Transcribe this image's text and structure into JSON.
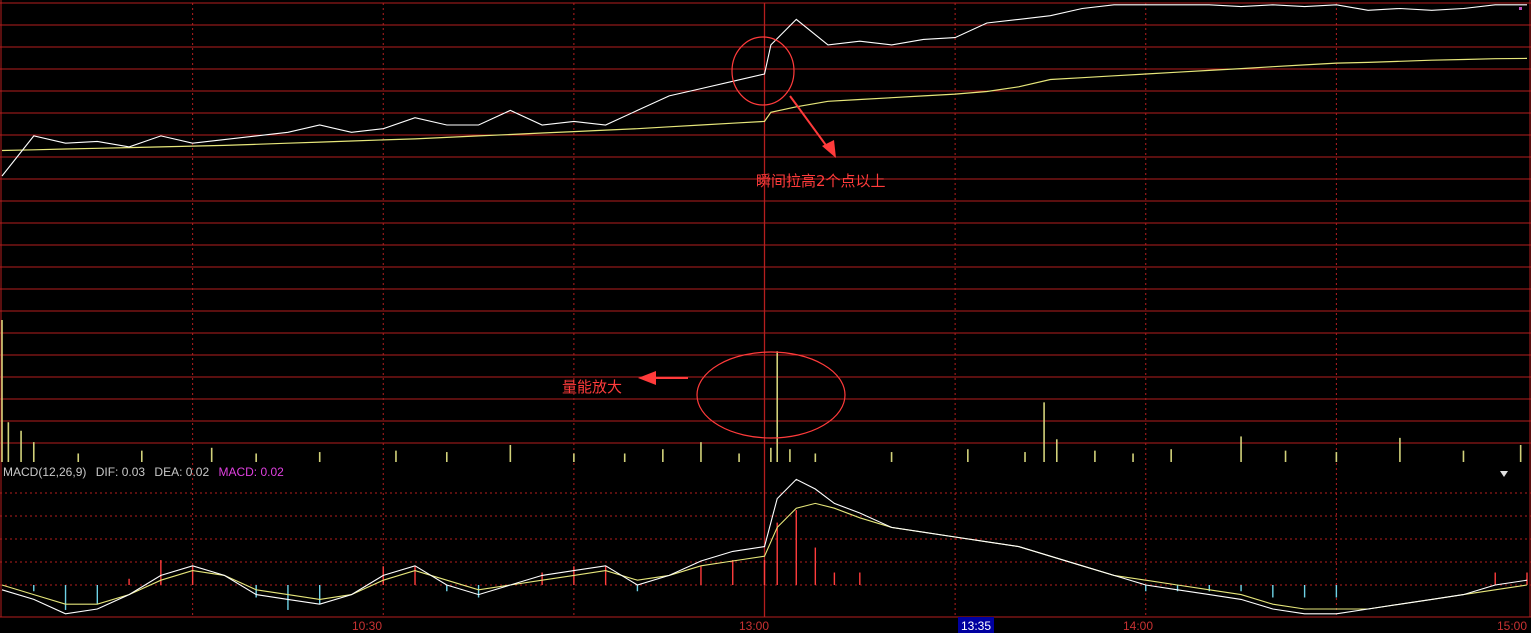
{
  "colors": {
    "background": "#000000",
    "grid": "#b41e1e",
    "price_line": "#ffffff",
    "avg_line": "#e6e67a",
    "volume_bar": "#d2d27a",
    "macd_positive": "#ff3c3c",
    "macd_negative": "#6ed2e6",
    "macd_label": "#c8c8c8",
    "macd_value": "#e040e0",
    "annotation": "#ff3b3b",
    "time_highlight_bg": "#0000a0"
  },
  "macd_header": {
    "name": "MACD(12,26,9)",
    "dif": "DIF: 0.03",
    "dea": "DEA: 0.02",
    "macd": "MACD: 0.02"
  },
  "annotations": {
    "price_spike": "瞬间拉高2个点以上",
    "volume_spike": "量能放大"
  },
  "collapse_icon": "triangle-down-icon",
  "chart_data": [
    {
      "type": "line",
      "panel": "price",
      "x_ticks": [
        "10:30",
        "13:00",
        "13:35",
        "14:00",
        "15:00"
      ],
      "highlighted_tick": "13:35",
      "grid": true,
      "x": [
        0,
        5,
        10,
        15,
        20,
        25,
        30,
        35,
        40,
        45,
        50,
        55,
        60,
        65,
        70,
        75,
        80,
        85,
        90,
        95,
        100,
        105,
        110,
        115,
        120,
        121,
        125,
        130,
        135,
        140,
        145,
        150,
        155,
        160,
        165,
        170,
        175,
        180,
        185,
        190,
        195,
        200,
        205,
        210,
        215,
        220,
        225,
        230,
        235,
        240
      ],
      "series": [
        {
          "name": "price",
          "values": [
            0.0,
            1.1,
            0.9,
            0.95,
            0.8,
            1.1,
            0.9,
            1.0,
            1.1,
            1.2,
            1.4,
            1.2,
            1.3,
            1.6,
            1.4,
            1.4,
            1.8,
            1.4,
            1.5,
            1.4,
            1.8,
            2.2,
            2.4,
            2.6,
            2.8,
            3.6,
            4.3,
            3.6,
            3.7,
            3.6,
            3.75,
            3.8,
            4.2,
            4.3,
            4.4,
            4.6,
            4.7,
            4.7,
            4.7,
            4.7,
            4.65,
            4.7,
            4.65,
            4.7,
            4.55,
            4.6,
            4.55,
            4.6,
            4.7,
            4.7
          ]
        },
        {
          "name": "avg",
          "values": [
            0.7,
            0.72,
            0.74,
            0.76,
            0.78,
            0.8,
            0.82,
            0.84,
            0.87,
            0.9,
            0.93,
            0.96,
            0.99,
            1.02,
            1.06,
            1.1,
            1.14,
            1.18,
            1.22,
            1.26,
            1.3,
            1.35,
            1.4,
            1.45,
            1.5,
            1.75,
            1.9,
            2.05,
            2.1,
            2.15,
            2.2,
            2.25,
            2.32,
            2.45,
            2.65,
            2.7,
            2.75,
            2.8,
            2.85,
            2.9,
            2.95,
            3.0,
            3.05,
            3.1,
            3.12,
            3.15,
            3.18,
            3.2,
            3.22,
            3.23
          ]
        }
      ]
    },
    {
      "type": "bar",
      "panel": "volume",
      "x": [
        0,
        1,
        3,
        5,
        12,
        22,
        33,
        40,
        50,
        62,
        70,
        80,
        90,
        98,
        104,
        110,
        116,
        121,
        122,
        124,
        128,
        140,
        152,
        161,
        164,
        166,
        172,
        178,
        184,
        195,
        202,
        210,
        220,
        230,
        239
      ],
      "values": [
        100,
        28,
        22,
        14,
        6,
        8,
        10,
        6,
        7,
        8,
        7,
        12,
        6,
        6,
        9,
        14,
        6,
        10,
        78,
        9,
        6,
        7,
        9,
        7,
        42,
        16,
        8,
        6,
        9,
        18,
        8,
        7,
        17,
        8,
        12
      ]
    },
    {
      "type": "line",
      "panel": "macd",
      "x": [
        0,
        5,
        10,
        15,
        20,
        25,
        30,
        35,
        40,
        45,
        50,
        55,
        60,
        65,
        70,
        75,
        80,
        85,
        90,
        95,
        100,
        105,
        110,
        115,
        120,
        122,
        125,
        128,
        131,
        135,
        140,
        145,
        150,
        155,
        160,
        165,
        170,
        175,
        180,
        185,
        190,
        195,
        200,
        205,
        210,
        215,
        220,
        225,
        230,
        235,
        240
      ],
      "series": [
        {
          "name": "DIF",
          "values": [
            -0.01,
            -0.03,
            -0.06,
            -0.05,
            -0.02,
            0.02,
            0.04,
            0.02,
            -0.02,
            -0.03,
            -0.04,
            -0.02,
            0.02,
            0.04,
            0.0,
            -0.02,
            0.0,
            0.02,
            0.03,
            0.04,
            0.0,
            0.02,
            0.05,
            0.07,
            0.08,
            0.18,
            0.22,
            0.2,
            0.17,
            0.15,
            0.12,
            0.11,
            0.1,
            0.09,
            0.08,
            0.06,
            0.04,
            0.02,
            0.0,
            -0.01,
            -0.02,
            -0.03,
            -0.05,
            -0.06,
            -0.06,
            -0.05,
            -0.04,
            -0.03,
            -0.02,
            0.0,
            0.01
          ]
        },
        {
          "name": "DEA",
          "values": [
            0.0,
            -0.02,
            -0.04,
            -0.04,
            -0.02,
            0.01,
            0.03,
            0.02,
            -0.01,
            -0.02,
            -0.03,
            -0.02,
            0.01,
            0.03,
            0.01,
            -0.01,
            0.0,
            0.01,
            0.02,
            0.03,
            0.01,
            0.02,
            0.04,
            0.05,
            0.06,
            0.12,
            0.16,
            0.17,
            0.16,
            0.14,
            0.12,
            0.11,
            0.1,
            0.09,
            0.08,
            0.06,
            0.04,
            0.02,
            0.01,
            0.0,
            -0.01,
            -0.02,
            -0.04,
            -0.05,
            -0.05,
            -0.05,
            -0.04,
            -0.03,
            -0.02,
            -0.01,
            0.0
          ]
        }
      ]
    },
    {
      "type": "bar",
      "panel": "macd",
      "x": [
        5,
        10,
        15,
        20,
        25,
        30,
        35,
        40,
        45,
        50,
        55,
        60,
        65,
        70,
        75,
        80,
        85,
        90,
        95,
        100,
        105,
        110,
        115,
        120,
        122,
        125,
        128,
        131,
        135,
        140,
        145,
        150,
        155,
        160,
        165,
        170,
        175,
        180,
        185,
        190,
        195,
        200,
        205,
        210,
        215,
        220,
        225,
        230,
        235,
        240
      ],
      "values": [
        -0.01,
        -0.04,
        -0.03,
        0.01,
        0.04,
        0.03,
        0.0,
        -0.02,
        -0.04,
        -0.03,
        0.0,
        0.03,
        0.03,
        -0.01,
        -0.02,
        0.0,
        0.02,
        0.03,
        0.03,
        -0.01,
        0.0,
        0.03,
        0.04,
        0.04,
        0.1,
        0.12,
        0.06,
        0.02,
        0.02,
        0.0,
        0.0,
        0.0,
        0.0,
        0.0,
        0.0,
        0.0,
        0.0,
        -0.01,
        -0.01,
        -0.01,
        -0.01,
        -0.02,
        -0.02,
        -0.02,
        0.0,
        0.0,
        0.0,
        0.0,
        0.02,
        0.02
      ]
    }
  ]
}
